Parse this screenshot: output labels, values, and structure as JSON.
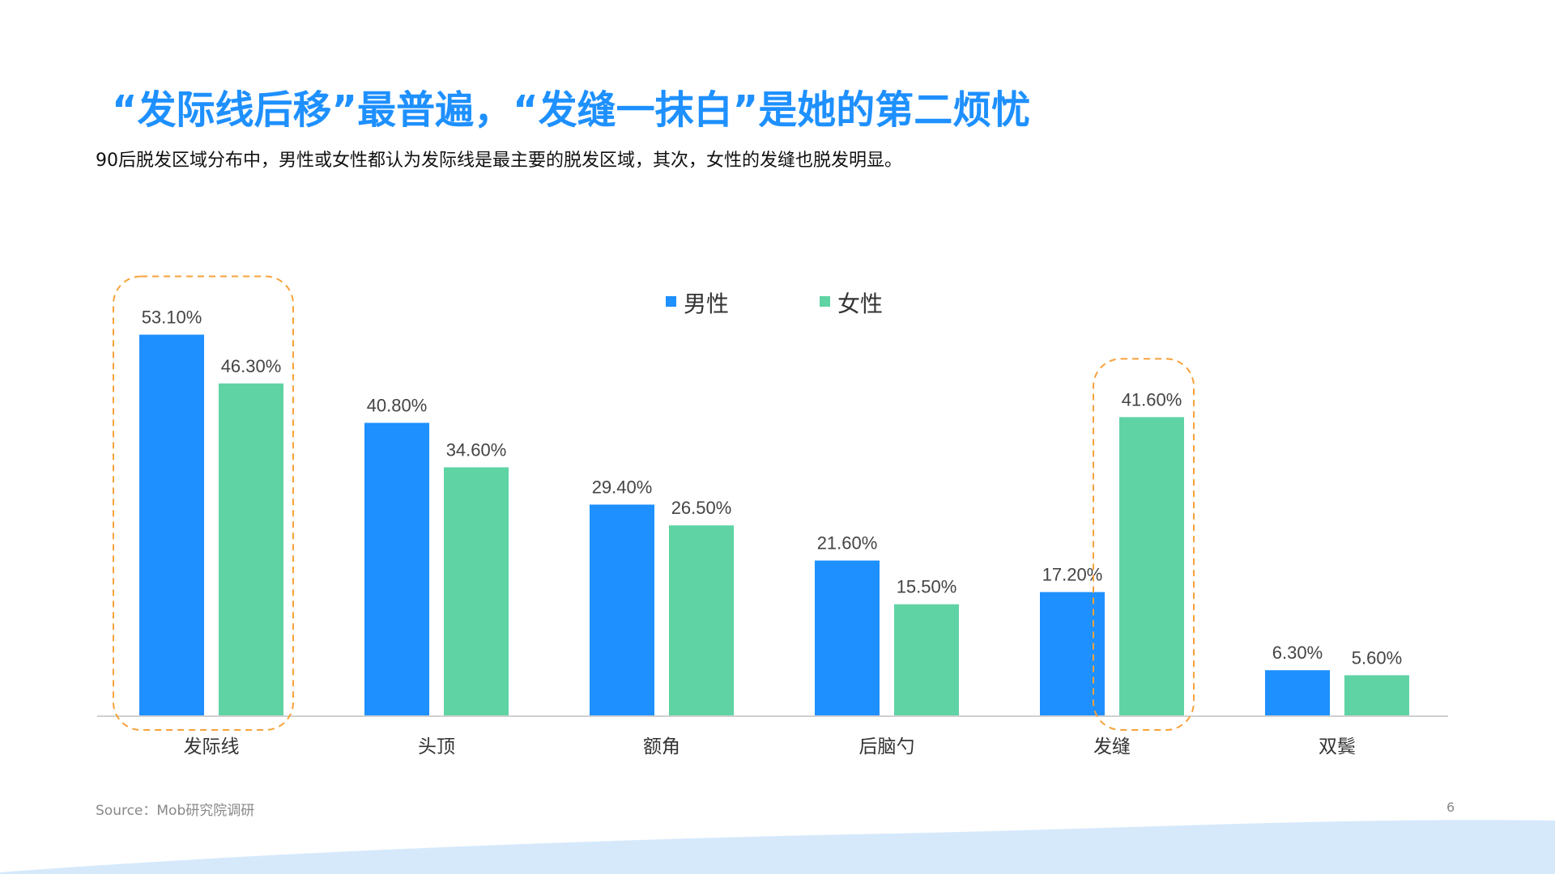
{
  "header": {
    "title": "“发际线后移”最普遍，“发缝一抹白”是她的第二烦忧",
    "subtitle": "90后脱发区域分布中，男性或女性都认为发际线是最主要的脱发区域，其次，女性的发缝也脱发明显。"
  },
  "footer": {
    "source": "Source：Mob研究院调研",
    "page_number": "6"
  },
  "colors": {
    "title": "#1E90FF",
    "male": "#1E90FF",
    "female": "#5FD3A4",
    "highlight": "#F7A23B",
    "wave": "#D6E9FB"
  },
  "chart_data": {
    "type": "bar",
    "categories": [
      "发际线",
      "头顶",
      "额角",
      "后脑勺",
      "发缝",
      "双鬓"
    ],
    "series": [
      {
        "name": "男性",
        "values": [
          53.1,
          40.8,
          29.4,
          21.6,
          17.2,
          6.3
        ],
        "labels": [
          "53.10%",
          "40.80%",
          "29.40%",
          "21.60%",
          "17.20%",
          "6.30%"
        ]
      },
      {
        "name": "女性",
        "values": [
          46.3,
          34.6,
          26.5,
          15.5,
          41.6,
          5.6
        ],
        "labels": [
          "46.30%",
          "34.60%",
          "26.50%",
          "15.50%",
          "41.60%",
          "5.60%"
        ]
      }
    ],
    "ylim": [
      0,
      60
    ],
    "grid": false,
    "legend": "top-center",
    "highlighted": [
      {
        "category": "发际线",
        "series": [
          "男性",
          "女性"
        ]
      },
      {
        "category": "发缝",
        "series": [
          "女性"
        ]
      }
    ]
  }
}
